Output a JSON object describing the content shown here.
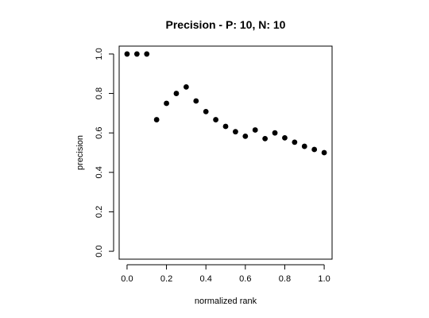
{
  "chart_data": {
    "type": "scatter",
    "title": "Precision - P: 10, N: 10",
    "xlabel": "normalized rank",
    "ylabel": "precision",
    "xlim": [
      -0.04,
      1.04
    ],
    "ylim": [
      -0.04,
      1.04
    ],
    "xticks": [
      "0.0",
      "0.2",
      "0.4",
      "0.6",
      "0.8",
      "1.0"
    ],
    "yticks": [
      "0.0",
      "0.2",
      "0.4",
      "0.6",
      "0.8",
      "1.0"
    ],
    "grid": false,
    "point_color": "#000000",
    "series": [
      {
        "x": [
          0.0,
          0.05,
          0.1,
          0.15,
          0.2,
          0.25,
          0.3,
          0.35,
          0.4,
          0.45,
          0.5,
          0.55,
          0.6,
          0.65,
          0.7,
          0.75,
          0.8,
          0.85,
          0.9,
          0.95,
          1.0
        ],
        "y": [
          1.0,
          1.0,
          1.0,
          0.667,
          0.75,
          0.8,
          0.833,
          0.762,
          0.708,
          0.667,
          0.633,
          0.606,
          0.583,
          0.615,
          0.571,
          0.6,
          0.575,
          0.553,
          0.532,
          0.516,
          0.5
        ]
      }
    ]
  }
}
